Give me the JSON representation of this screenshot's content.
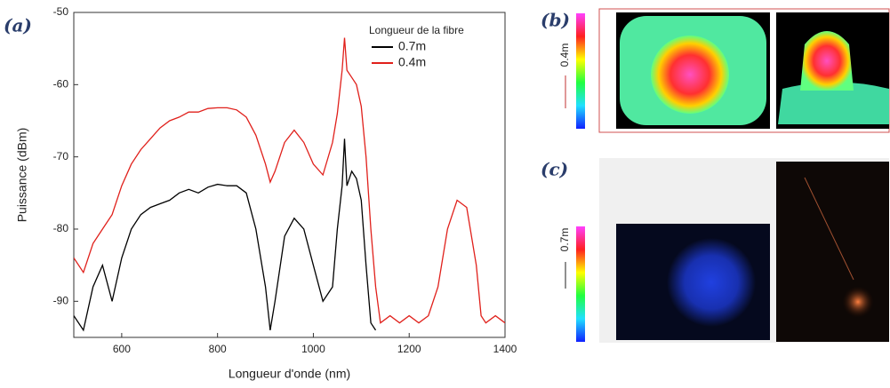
{
  "chart_data": {
    "type": "line",
    "x_label": "Longueur d'onde (nm)",
    "y_label": "Puissance (dBm)",
    "legend_title": "Longueur de la fibre",
    "legend_position": "upper right",
    "xlim": [
      500,
      1400
    ],
    "xticks": [
      600,
      800,
      1000,
      1200,
      1400
    ],
    "ylim": [
      -95,
      -50
    ],
    "yticks": [
      -90,
      -80,
      -70,
      -60,
      -50
    ],
    "x": [
      500,
      520,
      540,
      560,
      580,
      600,
      620,
      640,
      660,
      680,
      700,
      720,
      740,
      760,
      780,
      800,
      820,
      840,
      860,
      880,
      900,
      910,
      920,
      940,
      960,
      980,
      1000,
      1020,
      1040,
      1050,
      1060,
      1065,
      1070,
      1080,
      1090,
      1100,
      1110,
      1120,
      1130,
      1140,
      1160,
      1180,
      1200,
      1220,
      1240,
      1260,
      1280,
      1300,
      1320,
      1340,
      1350,
      1360,
      1380,
      1400
    ],
    "series": [
      {
        "name": "0.7m",
        "color": "#000000",
        "values": [
          -92,
          -94,
          -88,
          -85,
          -90,
          -84,
          -80,
          -78,
          -77,
          -76.5,
          -76,
          -75,
          -74.5,
          -75,
          -74.2,
          -73.8,
          -74,
          -74,
          -75,
          -80,
          -88,
          -94,
          -90,
          -81,
          -78.5,
          -80,
          -85,
          -90,
          -88,
          -80,
          -74,
          -67.5,
          -74,
          -72,
          -73,
          -76,
          -85,
          -93,
          -94,
          null,
          null,
          null,
          null,
          null,
          null,
          null,
          null,
          null,
          null,
          null,
          null,
          null,
          null,
          null
        ]
      },
      {
        "name": "0.4m",
        "color": "#e0201b",
        "values": [
          -84,
          -86,
          -82,
          -80,
          -78,
          -74,
          -71,
          -69,
          -67.5,
          -66,
          -65,
          -64.5,
          -63.8,
          -63.8,
          -63.3,
          -63.2,
          -63.2,
          -63.5,
          -64.5,
          -67,
          -71,
          -73.5,
          -72,
          -68,
          -66.3,
          -68,
          -71,
          -72.5,
          -68,
          -64,
          -58,
          -53.5,
          -58,
          -59,
          -60,
          -63,
          -70,
          -80,
          -88,
          -93,
          -92,
          -93,
          -92,
          -93,
          -92,
          -88,
          -80,
          -76,
          -77,
          -85,
          -92,
          -93,
          -92,
          -93
        ]
      }
    ]
  },
  "labels": {
    "panel_a": "(a)",
    "panel_b": "(b)",
    "panel_c": "(c)",
    "length_b": "0.4m",
    "length_c": "0.7m"
  }
}
